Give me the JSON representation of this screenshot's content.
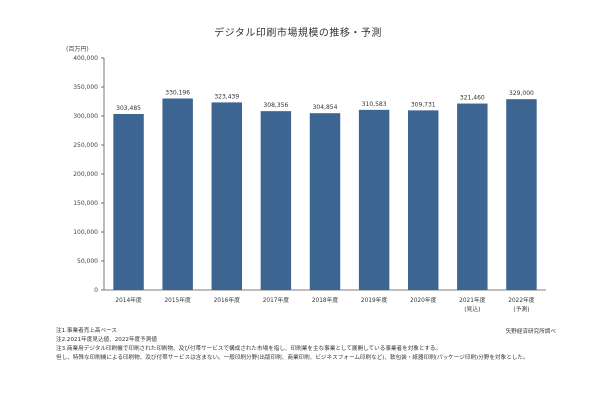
{
  "chart_data": {
    "type": "bar",
    "title": "デジタル印刷市場規模の推移・予測",
    "unit_label": "(百万円)",
    "categories": [
      "2014年度",
      "2015年度",
      "2016年度",
      "2017年度",
      "2018年度",
      "2019年度",
      "2020年度",
      "2021年度",
      "2022年度"
    ],
    "category_sublabels": [
      "",
      "",
      "",
      "",
      "",
      "",
      "",
      "(見込)",
      "(予測)"
    ],
    "values": [
      303485,
      330196,
      323439,
      308356,
      304854,
      310583,
      309731,
      321460,
      329000
    ],
    "value_labels": [
      "303,485",
      "330,196",
      "323,439",
      "308,356",
      "304,854",
      "310,583",
      "309,731",
      "321,460",
      "329,000"
    ],
    "ylim": [
      0,
      400000
    ],
    "yticks": [
      "0",
      "50,000",
      "100,000",
      "150,000",
      "200,000",
      "250,000",
      "300,000",
      "350,000",
      "400,000"
    ],
    "grid": false,
    "bar_color": "#3d6591"
  },
  "notes": [
    "注1.事業者売上高ベース",
    "注2.2021年度見込値、2022年度予測値",
    "注3.商業用デジタル印刷機で印刷された印刷物、及び付帯サービスで構成された市場を指し、印刷業を主な事業として展開している事業者を対象とする。",
    "但し、特殊な印刷機による印刷物、及び付帯サービスは含まない。一般印刷分野(出版印刷、商業印刷、ビジネスフォーム印刷など)、軟包装・紙器印刷(パッケージ印刷)分野を対象とした。"
  ],
  "source": "矢野経済研究所調べ"
}
